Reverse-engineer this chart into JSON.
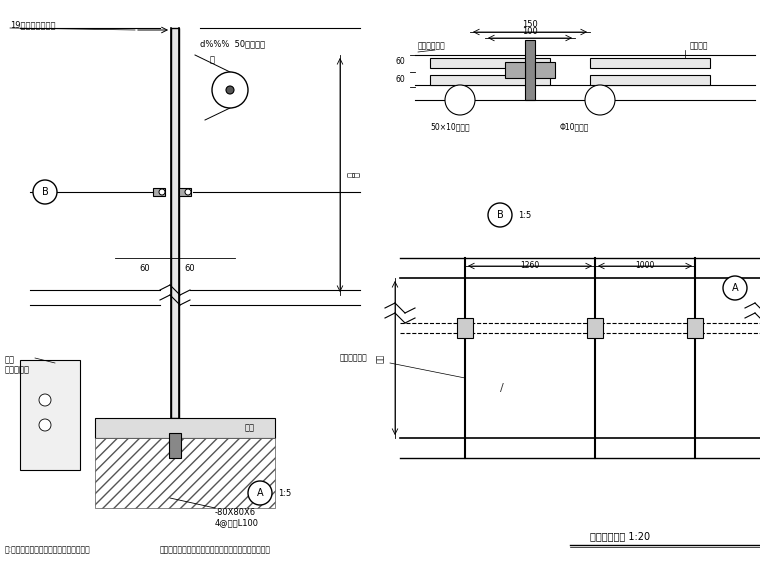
{
  "bg_color": "#ffffff",
  "line_color": "#000000",
  "gray_line": "#888888",
  "light_gray": "#aaaaaa",
  "hatch_color": "#555555",
  "title_bottom_left": "注:铝板、玻璃栏板的厚度最终由厂商决定",
  "title_bottom_left2": "铝板、玻璃栏板的规格型材与其特殊详见厂商技术要求",
  "title_bottom_right": "玻璃栏杆立面 1:20",
  "label_A": "A",
  "label_B": "B",
  "scale_A": "1:5",
  "scale_B": "1:5",
  "label_19mm": "19厚透明钢化玻璃",
  "label_d50": "d%%% 50不锈钢管",
  "label_shicai": "石材",
  "label_80x80": "-80X80X6",
  "label_48": "4@锚栓L100",
  "label_mianban": "面板\n二次装修层",
  "label_touming": "透明钢化玻璃",
  "label_50x10": "50×10不锈钢",
  "label_d10": "Φ10不锈钢",
  "label_touming2": "透明钢化玻璃",
  "label_jiaodian": "教徒衬垫",
  "label_touming3": "透明钢化玻璃"
}
